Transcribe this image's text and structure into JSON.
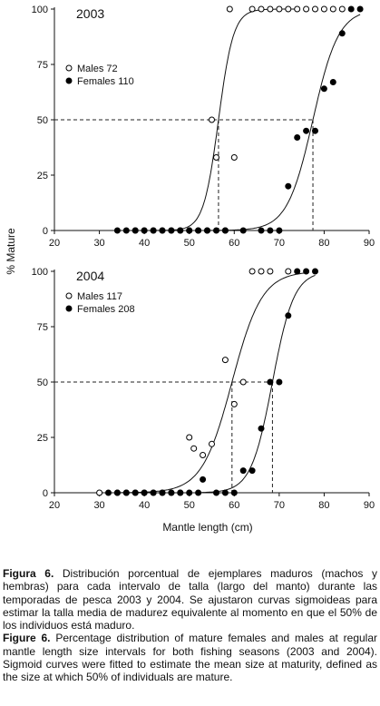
{
  "figure": {
    "ylabel": "% Mature",
    "xlabel": "Mantle length (cm)",
    "x_ticks": [
      20,
      30,
      40,
      50,
      60,
      70,
      80,
      90
    ],
    "y_ticks": [
      0,
      25,
      50,
      75,
      100
    ]
  },
  "chart_data": [
    {
      "type": "scatter",
      "title": "2003",
      "xlabel": "Mantle length (cm)",
      "ylabel": "% Mature",
      "xlim": [
        20,
        90
      ],
      "ylim": [
        0,
        100
      ],
      "legend": "top-left",
      "reference_line_y": 50,
      "series": [
        {
          "name": "Males 72",
          "marker": "open-circle",
          "points": [
            [
              38,
              0
            ],
            [
              40,
              0
            ],
            [
              42,
              0
            ],
            [
              44,
              0
            ],
            [
              46,
              0
            ],
            [
              48,
              0
            ],
            [
              50,
              0
            ],
            [
              52,
              0
            ],
            [
              54,
              0
            ],
            [
              55,
              50
            ],
            [
              56,
              33
            ],
            [
              58,
              0
            ],
            [
              59,
              100
            ],
            [
              60,
              33
            ],
            [
              64,
              100
            ],
            [
              66,
              100
            ],
            [
              68,
              100
            ],
            [
              70,
              100
            ],
            [
              72,
              100
            ],
            [
              74,
              100
            ],
            [
              76,
              100
            ],
            [
              78,
              100
            ],
            [
              80,
              100
            ],
            [
              82,
              100
            ],
            [
              84,
              100
            ]
          ],
          "fitted_curve": {
            "L50": 56.5,
            "slope": 0.6,
            "x_range": [
              39,
              74
            ]
          }
        },
        {
          "name": "Females 110",
          "marker": "filled-circle",
          "points": [
            [
              34,
              0
            ],
            [
              36,
              0
            ],
            [
              38,
              0
            ],
            [
              40,
              0
            ],
            [
              42,
              0
            ],
            [
              44,
              0
            ],
            [
              46,
              0
            ],
            [
              48,
              0
            ],
            [
              50,
              0
            ],
            [
              52,
              0
            ],
            [
              54,
              0
            ],
            [
              56,
              0
            ],
            [
              58,
              0
            ],
            [
              62,
              0
            ],
            [
              66,
              0
            ],
            [
              68,
              0
            ],
            [
              70,
              0
            ],
            [
              72,
              20
            ],
            [
              74,
              42
            ],
            [
              76,
              45
            ],
            [
              78,
              45
            ],
            [
              80,
              64
            ],
            [
              82,
              67
            ],
            [
              84,
              89
            ],
            [
              86,
              100
            ],
            [
              88,
              100
            ]
          ],
          "fitted_curve": {
            "L50": 77.5,
            "slope": 0.35,
            "x_range": [
              54,
              88
            ]
          }
        }
      ]
    },
    {
      "type": "scatter",
      "title": "2004",
      "xlabel": "Mantle length (cm)",
      "ylabel": "% Mature",
      "xlim": [
        20,
        90
      ],
      "ylim": [
        0,
        100
      ],
      "legend": "top-left",
      "reference_line_y": 50,
      "series": [
        {
          "name": "Males 117",
          "marker": "open-circle",
          "points": [
            [
              30,
              0
            ],
            [
              34,
              0
            ],
            [
              36,
              0
            ],
            [
              38,
              0
            ],
            [
              40,
              0
            ],
            [
              42,
              0
            ],
            [
              44,
              0
            ],
            [
              46,
              0
            ],
            [
              48,
              0
            ],
            [
              50,
              25
            ],
            [
              51,
              20
            ],
            [
              53,
              17
            ],
            [
              55,
              22
            ],
            [
              58,
              60
            ],
            [
              60,
              40
            ],
            [
              62,
              50
            ],
            [
              64,
              100
            ],
            [
              66,
              100
            ],
            [
              68,
              100
            ],
            [
              72,
              100
            ]
          ],
          "fitted_curve": {
            "L50": 59.5,
            "slope": 0.3,
            "x_range": [
              34,
              76
            ]
          }
        },
        {
          "name": "Females 208",
          "marker": "filled-circle",
          "points": [
            [
              32,
              0
            ],
            [
              34,
              0
            ],
            [
              36,
              0
            ],
            [
              38,
              0
            ],
            [
              40,
              0
            ],
            [
              42,
              0
            ],
            [
              44,
              0
            ],
            [
              46,
              0
            ],
            [
              48,
              0
            ],
            [
              50,
              0
            ],
            [
              52,
              0
            ],
            [
              53,
              6
            ],
            [
              56,
              0
            ],
            [
              58,
              0
            ],
            [
              60,
              0
            ],
            [
              62,
              10
            ],
            [
              64,
              10
            ],
            [
              66,
              29
            ],
            [
              68,
              50
            ],
            [
              70,
              50
            ],
            [
              72,
              80
            ],
            [
              74,
              100
            ],
            [
              76,
              100
            ],
            [
              78,
              100
            ]
          ],
          "fitted_curve": {
            "L50": 68.5,
            "slope": 0.42,
            "x_range": [
              52,
              78
            ]
          }
        }
      ]
    }
  ],
  "caption": {
    "es_label": "Figura 6.",
    "es_text": " Distribución porcentual de ejemplares maduros (machos y hembras) para cada intervalo de talla (largo del manto) durante las temporadas de pesca 2003 y 2004. Se ajustaron curvas sigmoideas para estimar la talla media de madurez equivalente al momento en que el 50% de los individuos está maduro.",
    "en_label": "Figure 6.",
    "en_text": " Percentage distribution of mature females and males at regular mantle length size intervals for both fishing seasons (2003 and 2004). Sigmoid curves were fitted to estimate the mean size at maturity, defined as the size at which 50% of individuals are mature."
  }
}
